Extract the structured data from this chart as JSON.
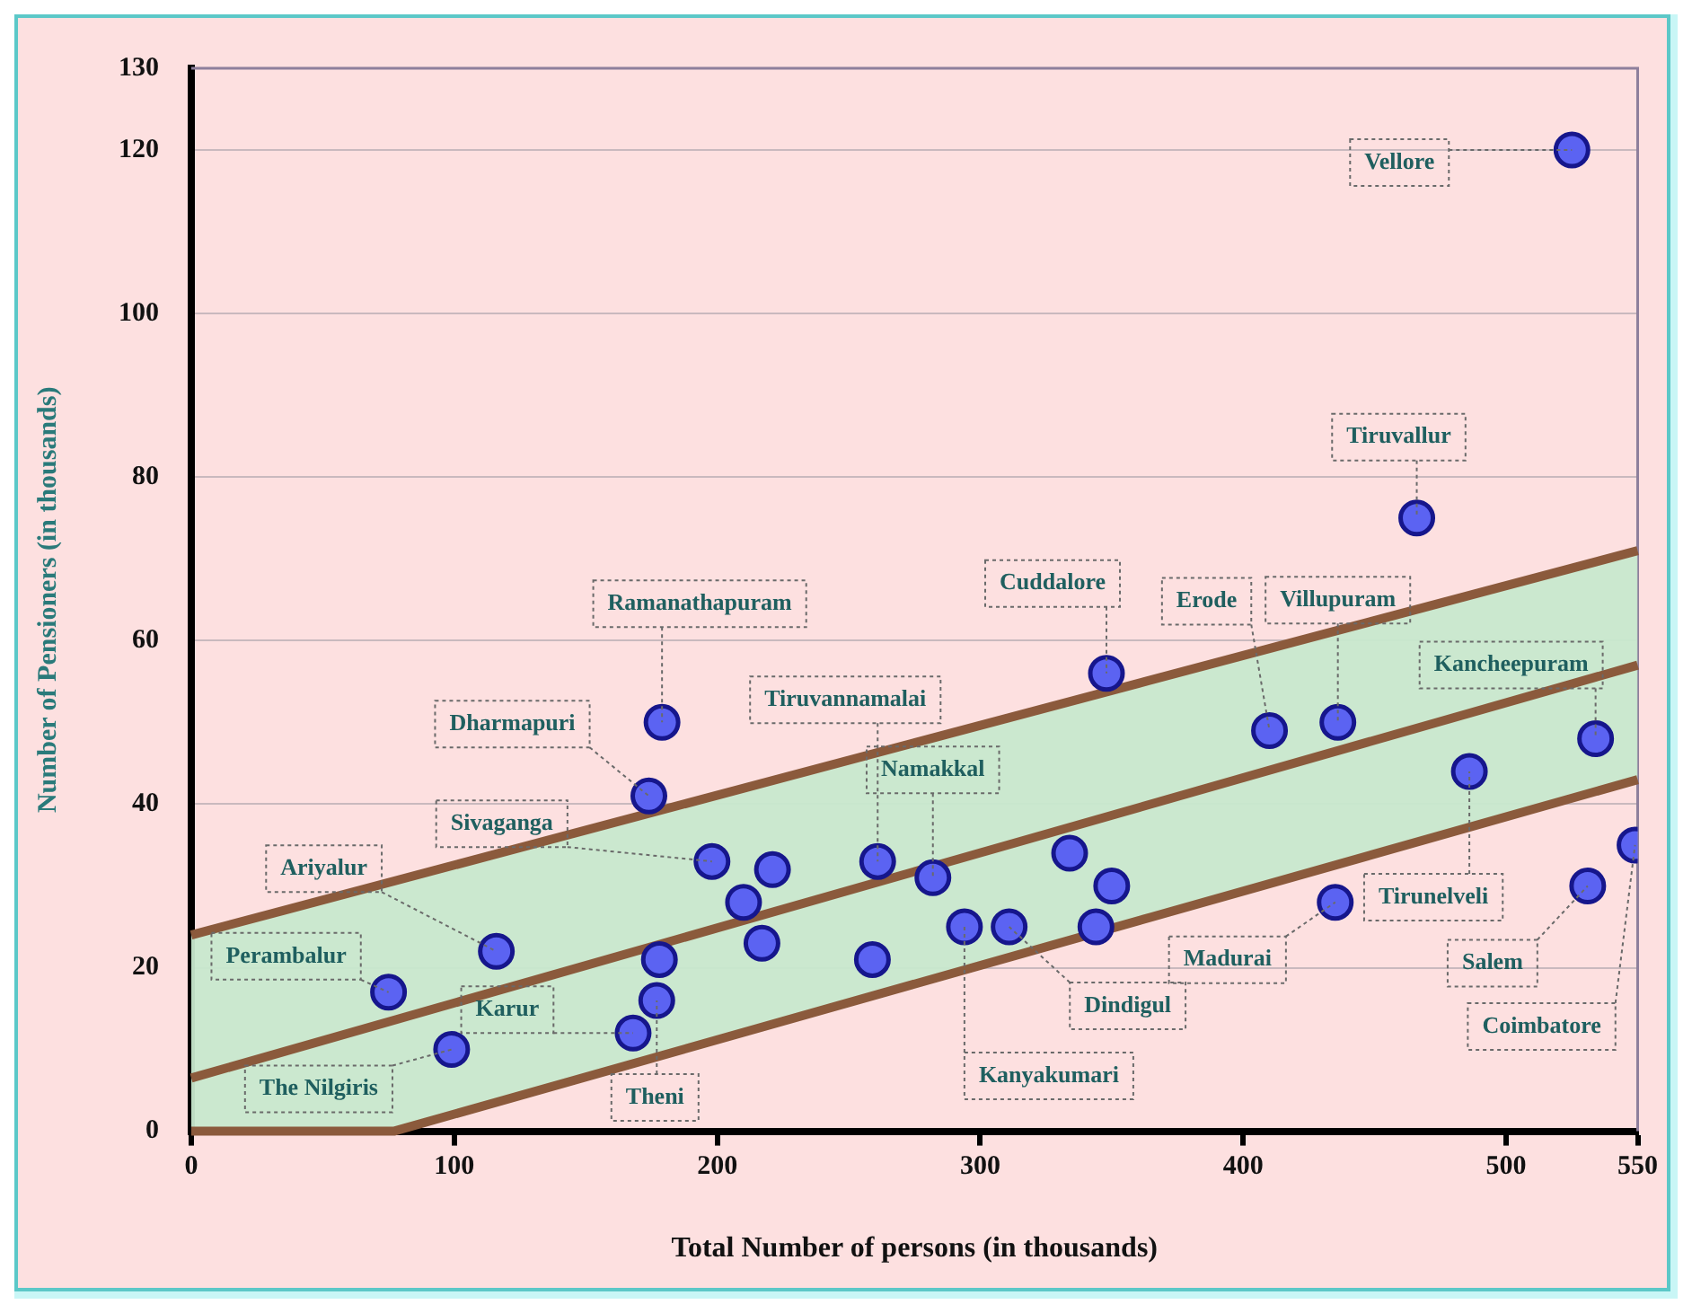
{
  "chart_data": {
    "type": "scatter",
    "xlabel": "Total Number of persons (in thousands)",
    "ylabel": "Number of Pensioners (in thousands)",
    "xlim": [
      0,
      550
    ],
    "xticks": [
      0,
      100,
      200,
      300,
      400,
      500,
      550
    ],
    "ylim": [
      0,
      130
    ],
    "yticks": [
      0,
      20,
      40,
      60,
      80,
      100,
      120,
      130
    ],
    "grid": "y",
    "legend": false,
    "series": [
      {
        "type": "scatter",
        "marker": "circle",
        "color": "#5b63f2",
        "x": [
          75,
          99,
          116,
          168,
          177,
          178,
          179,
          174,
          198,
          221,
          210,
          217,
          261,
          282,
          259,
          294,
          311,
          334,
          350,
          344,
          348,
          410,
          436,
          435,
          486,
          534,
          531,
          549,
          466,
          525
        ],
        "values": [
          17,
          10,
          22,
          12,
          16,
          21,
          50,
          41,
          33,
          32,
          28,
          23,
          33,
          31,
          21,
          25,
          25,
          34,
          30,
          25,
          56,
          49,
          50,
          28,
          44,
          48,
          30,
          35,
          75,
          120
        ]
      },
      {
        "type": "line",
        "color": "#8b5a3c",
        "x": [
          0,
          550
        ],
        "values": [
          24,
          71
        ]
      },
      {
        "type": "line",
        "color": "#8b5a3c",
        "x": [
          0,
          550
        ],
        "values": [
          6.5,
          57
        ]
      },
      {
        "type": "line",
        "color": "#8b5a3c",
        "x": [
          0,
          77,
          550
        ],
        "values": [
          0,
          0,
          43
        ]
      }
    ],
    "annotations": [
      {
        "text": "Perambalur",
        "x": 75,
        "y": 17
      },
      {
        "text": "The Nilgiris",
        "x": 99,
        "y": 10
      },
      {
        "text": "Ariyalur",
        "x": 116,
        "y": 22
      },
      {
        "text": "Karur",
        "x": 168,
        "y": 12
      },
      {
        "text": "Theni",
        "x": 177,
        "y": 16
      },
      {
        "text": "Ramanathapuram",
        "x": 179,
        "y": 50
      },
      {
        "text": "Dharmapuri",
        "x": 174,
        "y": 41
      },
      {
        "text": "Sivaganga",
        "x": 198,
        "y": 33
      },
      {
        "text": "Tiruvannamalai",
        "x": 261,
        "y": 33
      },
      {
        "text": "Namakkal",
        "x": 282,
        "y": 31
      },
      {
        "text": "Kanyakumari",
        "x": 294,
        "y": 25
      },
      {
        "text": "Dindigul",
        "x": 311,
        "y": 25
      },
      {
        "text": "Cuddalore",
        "x": 348,
        "y": 56
      },
      {
        "text": "Erode",
        "x": 410,
        "y": 49
      },
      {
        "text": "Villupuram",
        "x": 436,
        "y": 50
      },
      {
        "text": "Madurai",
        "x": 435,
        "y": 28
      },
      {
        "text": "Tirunelveli",
        "x": 486,
        "y": 44
      },
      {
        "text": "Kancheepuram",
        "x": 534,
        "y": 48
      },
      {
        "text": "Salem",
        "x": 531,
        "y": 30
      },
      {
        "text": "Coimbatore",
        "x": 549,
        "y": 35
      },
      {
        "text": "Tiruvallur",
        "x": 466,
        "y": 75
      },
      {
        "text": "Vellore",
        "x": 525,
        "y": 120
      }
    ]
  }
}
